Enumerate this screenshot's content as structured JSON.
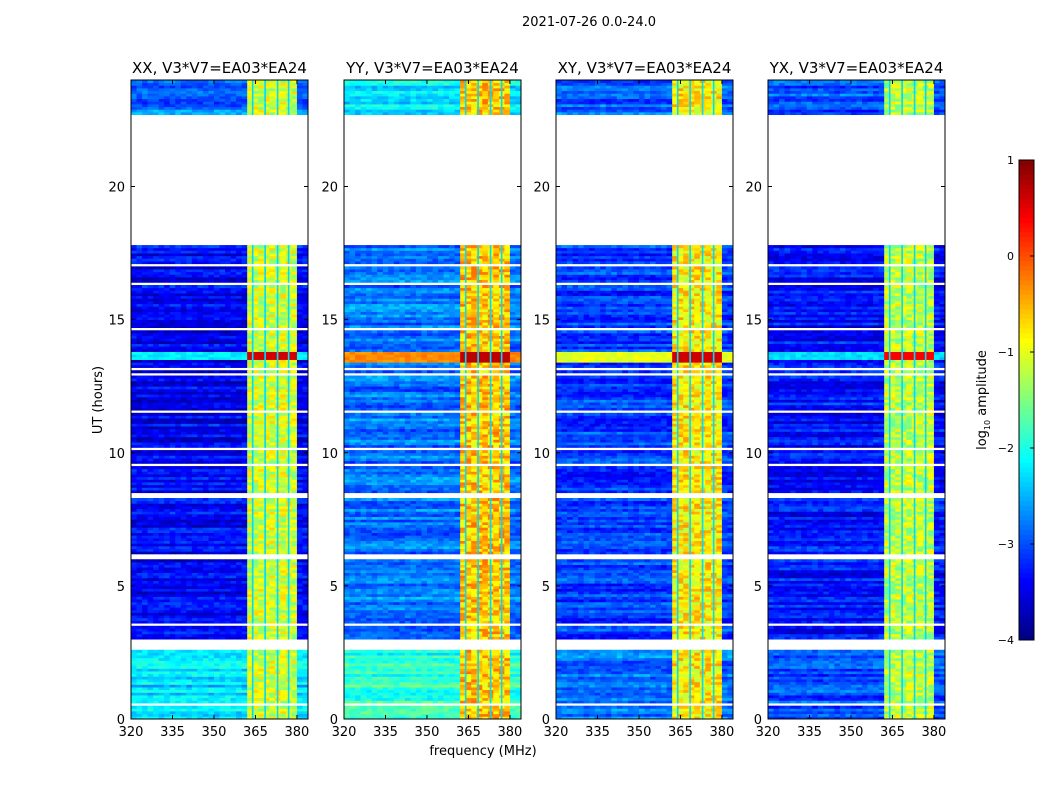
{
  "chart_data": {
    "type": "heatmap",
    "title": "2021-07-26 0.0-24.0",
    "xlabel": "frequency (MHz)",
    "ylabel": "UT (hours)",
    "xlim": [
      320,
      384
    ],
    "ylim": [
      0,
      24
    ],
    "xticks": [
      320,
      335,
      350,
      365,
      380
    ],
    "yticks": [
      0,
      5,
      10,
      15,
      20
    ],
    "colorbar": {
      "label": "log10 amplitude",
      "label_main": "log",
      "label_sub": "10",
      "label_rest": " amplitude",
      "range": [
        -4,
        1
      ],
      "ticks": [
        1,
        0,
        -1,
        -2,
        -3,
        -4
      ],
      "colormap": "jet"
    },
    "no_data_intervals_hours": [
      [
        2.6,
        3.0
      ],
      [
        3.55,
        3.65
      ],
      [
        4.65,
        4.7
      ],
      [
        5.05,
        5.1
      ],
      [
        6.0,
        6.15
      ],
      [
        7.25,
        7.3
      ],
      [
        8.3,
        8.45
      ],
      [
        9.45,
        9.6
      ],
      [
        10.1,
        10.2
      ],
      [
        11.5,
        11.55
      ],
      [
        12.85,
        12.95
      ],
      [
        13.05,
        13.15
      ],
      [
        14.6,
        14.65
      ],
      [
        16.3,
        16.4
      ],
      [
        17.0,
        17.1
      ],
      [
        17.8,
        22.7
      ],
      [
        0.55,
        0.6
      ],
      [
        1.5,
        1.55
      ]
    ],
    "rfi_band_mhz": [
      362,
      380
    ],
    "rfi_stripes_mhz": [
      364,
      368.5,
      373,
      377
    ],
    "panels": [
      {
        "title": "XX, V3*V7=EA03*EA24",
        "background": [
          [
            0,
            2.6,
            -2.3
          ],
          [
            3.0,
            18,
            -3.4
          ],
          [
            22.7,
            24,
            -2.8
          ]
        ],
        "rfi_level": -1.1,
        "broadband_events": [
          [
            13.5,
            13.8,
            -2.2,
            0.6
          ]
        ]
      },
      {
        "title": "YY, V3*V7=EA03*EA24",
        "background": [
          [
            0,
            2.6,
            -1.9
          ],
          [
            3.0,
            18,
            -2.8
          ],
          [
            22.7,
            24,
            -2.2
          ]
        ],
        "rfi_level": -0.6,
        "broadband_events": [
          [
            13.4,
            13.8,
            -0.3,
            0.7
          ]
        ]
      },
      {
        "title": "XY, V3*V7=EA03*EA24",
        "background": [
          [
            0,
            2.6,
            -2.8
          ],
          [
            3.0,
            18,
            -3.1
          ],
          [
            22.7,
            24,
            -2.9
          ]
        ],
        "rfi_level": -0.8,
        "broadband_events": [
          [
            13.4,
            13.8,
            -1.0,
            0.6
          ]
        ]
      },
      {
        "title": "YX, V3*V7=EA03*EA24",
        "background": [
          [
            0,
            2.6,
            -3.0
          ],
          [
            3.0,
            18,
            -3.3
          ],
          [
            22.7,
            24,
            -3.0
          ]
        ],
        "rfi_level": -1.2,
        "broadband_events": [
          [
            13.5,
            13.8,
            -2.3,
            0.4
          ]
        ]
      }
    ]
  }
}
